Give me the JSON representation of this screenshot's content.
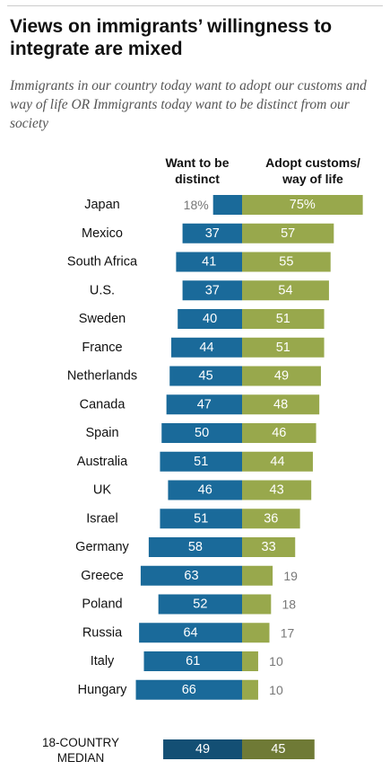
{
  "title": "Views on immigrants’ willingness to integrate are mixed",
  "subtitle": "Immigrants in our country today want to adopt our customs and way of life OR Immigrants today want to be distinct from our society",
  "columns": {
    "distinct_line1": "Want to be",
    "distinct_line2": "distinct",
    "adopt_line1": "Adopt customs/",
    "adopt_line2": "way of life"
  },
  "colors": {
    "distinct": "#1a6a9a",
    "adopt": "#98a84c",
    "median_distinct": "#134f74",
    "median_adopt": "#6f7a36",
    "label_dark": "#111111",
    "label_muted": "#777777"
  },
  "chart_data": {
    "type": "bar",
    "orientation": "horizontal-diverging",
    "categories": [
      "Japan",
      "Mexico",
      "South Africa",
      "U.S.",
      "Sweden",
      "France",
      "Netherlands",
      "Canada",
      "Spain",
      "Australia",
      "UK",
      "Israel",
      "Germany",
      "Greece",
      "Poland",
      "Russia",
      "Italy",
      "Hungary"
    ],
    "series": [
      {
        "name": "Want to be distinct",
        "values": [
          18,
          37,
          41,
          37,
          40,
          44,
          45,
          47,
          50,
          51,
          46,
          51,
          58,
          63,
          52,
          64,
          61,
          66
        ]
      },
      {
        "name": "Adopt customs/ way of life",
        "values": [
          75,
          57,
          55,
          54,
          51,
          51,
          49,
          48,
          46,
          44,
          43,
          36,
          33,
          19,
          18,
          17,
          10,
          10
        ]
      }
    ],
    "value_labels": {
      "distinct": [
        "18%",
        "37",
        "41",
        "37",
        "40",
        "44",
        "45",
        "47",
        "50",
        "51",
        "46",
        "51",
        "58",
        "63",
        "52",
        "64",
        "61",
        "66"
      ],
      "adopt": [
        "75%",
        "57",
        "55",
        "54",
        "51",
        "51",
        "49",
        "48",
        "46",
        "44",
        "43",
        "36",
        "33",
        "19",
        "18",
        "17",
        "10",
        "10"
      ]
    },
    "median": {
      "label_line1": "18-COUNTRY",
      "label_line2": "MEDIAN",
      "distinct": 49,
      "adopt": 45,
      "distinct_label": "49",
      "adopt_label": "45"
    }
  }
}
